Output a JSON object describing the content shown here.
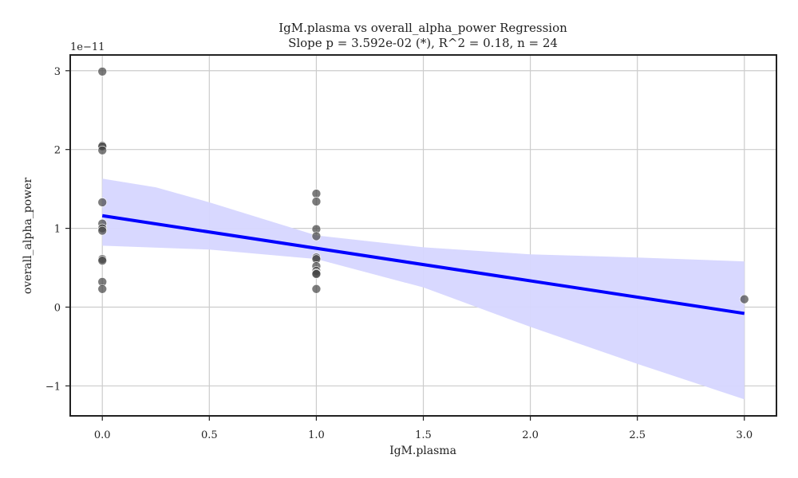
{
  "chart_data": {
    "type": "scatter",
    "title": "IgM.plasma vs overall_alpha_power Regression",
    "subtitle": "Slope p = 3.592e-02 (*), R^2 = 0.18, n = 24",
    "xlabel": "IgM.plasma",
    "ylabel": "overall_alpha_power",
    "y_offset_label": "1e−11",
    "xlim": [
      -0.15,
      3.15
    ],
    "ylim": [
      -1.38,
      3.2
    ],
    "x_ticks": [
      0.0,
      0.5,
      1.0,
      1.5,
      2.0,
      2.5,
      3.0
    ],
    "x_tick_labels": [
      "0.0",
      "0.5",
      "1.0",
      "1.5",
      "2.0",
      "2.5",
      "3.0"
    ],
    "y_ticks": [
      -1,
      0,
      1,
      2,
      3
    ],
    "y_tick_labels": [
      "−1",
      "0",
      "1",
      "2",
      "3"
    ],
    "grid": true,
    "colors": {
      "points": "#444444",
      "line": "#0000ff",
      "band": "#d6d6ff"
    },
    "points": [
      {
        "x": 0,
        "y": 2.99
      },
      {
        "x": 0,
        "y": 2.05
      },
      {
        "x": 0,
        "y": 2.04
      },
      {
        "x": 0,
        "y": 1.99
      },
      {
        "x": 0,
        "y": 1.33
      },
      {
        "x": 0,
        "y": 1.06
      },
      {
        "x": 0,
        "y": 1.0
      },
      {
        "x": 0,
        "y": 0.97
      },
      {
        "x": 0,
        "y": 0.61
      },
      {
        "x": 0,
        "y": 0.59
      },
      {
        "x": 0,
        "y": 0.32
      },
      {
        "x": 0,
        "y": 0.23
      },
      {
        "x": 1,
        "y": 1.44
      },
      {
        "x": 1,
        "y": 1.34
      },
      {
        "x": 1,
        "y": 0.99
      },
      {
        "x": 1,
        "y": 0.9
      },
      {
        "x": 1,
        "y": 0.63
      },
      {
        "x": 1,
        "y": 0.61
      },
      {
        "x": 1,
        "y": 0.52
      },
      {
        "x": 1,
        "y": 0.46
      },
      {
        "x": 1,
        "y": 0.43
      },
      {
        "x": 1,
        "y": 0.42
      },
      {
        "x": 1,
        "y": 0.23
      },
      {
        "x": 3,
        "y": 0.1
      }
    ],
    "regression_line": [
      {
        "x": 0,
        "y": 1.16
      },
      {
        "x": 3,
        "y": -0.08
      }
    ],
    "confidence_band": {
      "upper": [
        {
          "x": 0,
          "y": 1.63
        },
        {
          "x": 0.25,
          "y": 1.52
        },
        {
          "x": 0.5,
          "y": 1.33
        },
        {
          "x": 0.75,
          "y": 1.12
        },
        {
          "x": 1,
          "y": 0.91
        },
        {
          "x": 1.5,
          "y": 0.76
        },
        {
          "x": 2,
          "y": 0.67
        },
        {
          "x": 2.5,
          "y": 0.63
        },
        {
          "x": 3,
          "y": 0.58
        }
      ],
      "lower": [
        {
          "x": 0,
          "y": 0.78
        },
        {
          "x": 0.5,
          "y": 0.73
        },
        {
          "x": 1,
          "y": 0.61
        },
        {
          "x": 1.5,
          "y": 0.25
        },
        {
          "x": 2,
          "y": -0.25
        },
        {
          "x": 2.5,
          "y": -0.72
        },
        {
          "x": 3,
          "y": -1.17
        }
      ]
    }
  }
}
